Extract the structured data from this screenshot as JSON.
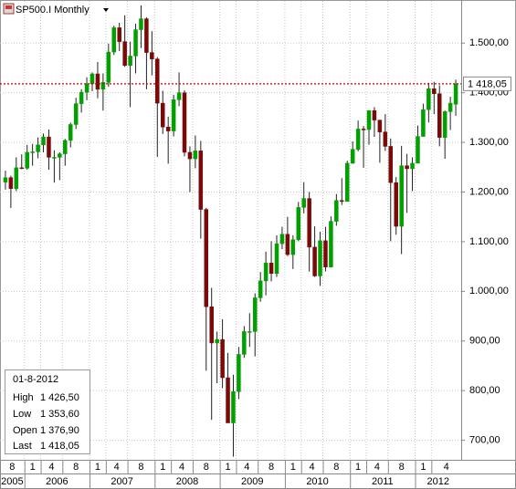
{
  "chart_data": {
    "type": "candlestick",
    "title": "SP500.I Monthly",
    "x": [
      "2005-09",
      "2005-10",
      "2005-11",
      "2005-12",
      "2006-01",
      "2006-02",
      "2006-03",
      "2006-04",
      "2006-05",
      "2006-06",
      "2006-07",
      "2006-08",
      "2006-09",
      "2006-10",
      "2006-11",
      "2006-12",
      "2007-01",
      "2007-02",
      "2007-03",
      "2007-04",
      "2007-05",
      "2007-06",
      "2007-07",
      "2007-08",
      "2007-09",
      "2007-10",
      "2007-11",
      "2007-12",
      "2008-01",
      "2008-02",
      "2008-03",
      "2008-04",
      "2008-05",
      "2008-06",
      "2008-07",
      "2008-08",
      "2008-09",
      "2008-10",
      "2008-11",
      "2008-12",
      "2009-01",
      "2009-02",
      "2009-03",
      "2009-04",
      "2009-05",
      "2009-06",
      "2009-07",
      "2009-08",
      "2009-09",
      "2009-10",
      "2009-11",
      "2009-12",
      "2010-01",
      "2010-02",
      "2010-03",
      "2010-04",
      "2010-05",
      "2010-06",
      "2010-07",
      "2010-08",
      "2010-09",
      "2010-10",
      "2010-11",
      "2010-12",
      "2011-01",
      "2011-02",
      "2011-03",
      "2011-04",
      "2011-05",
      "2011-06",
      "2011-07",
      "2011-08",
      "2011-09",
      "2011-10",
      "2011-11",
      "2011-12",
      "2012-01",
      "2012-02",
      "2012-03",
      "2012-04",
      "2012-05",
      "2012-06",
      "2012-07",
      "2012-08"
    ],
    "open": [
      1220,
      1229,
      1207,
      1249,
      1248,
      1280,
      1281,
      1295,
      1311,
      1270,
      1270,
      1277,
      1304,
      1336,
      1378,
      1401,
      1418,
      1438,
      1407,
      1421,
      1482,
      1531,
      1503,
      1455,
      1474,
      1527,
      1549,
      1481,
      1468,
      1379,
      1331,
      1323,
      1386,
      1400,
      1280,
      1267,
      1283,
      1165,
      969,
      896,
      903,
      826,
      735,
      798,
      873,
      919,
      919,
      987,
      1021,
      1057,
      1036,
      1096,
      1115,
      1074,
      1104,
      1169,
      1187,
      1089,
      1031,
      1102,
      1049,
      1141,
      1183,
      1181,
      1258,
      1286,
      1327,
      1326,
      1364,
      1345,
      1321,
      1292,
      1219,
      1131,
      1253,
      1247,
      1258,
      1312,
      1366,
      1408,
      1398,
      1310,
      1362,
      1376.9
    ],
    "high": [
      1243,
      1233,
      1270,
      1276,
      1295,
      1297,
      1310,
      1318,
      1326,
      1284,
      1280,
      1307,
      1340,
      1390,
      1407,
      1431,
      1441,
      1462,
      1439,
      1499,
      1535,
      1541,
      1556,
      1503,
      1539,
      1576,
      1552,
      1524,
      1472,
      1404,
      1352,
      1396,
      1441,
      1405,
      1292,
      1314,
      1303,
      1168,
      1007,
      919,
      944,
      876,
      832,
      888,
      930,
      956,
      996,
      1039,
      1080,
      1101,
      1113,
      1130,
      1150,
      1113,
      1180,
      1220,
      1200,
      1131,
      1120,
      1130,
      1151,
      1196,
      1228,
      1263,
      1302,
      1344,
      1333,
      1364,
      1371,
      1345,
      1357,
      1308,
      1230,
      1293,
      1277,
      1270,
      1334,
      1378,
      1420,
      1422,
      1415,
      1364,
      1392,
      1426.5
    ],
    "low": [
      1205,
      1168,
      1202,
      1246,
      1245,
      1253,
      1268,
      1280,
      1245,
      1219,
      1224,
      1253,
      1290,
      1327,
      1360,
      1385,
      1403,
      1389,
      1364,
      1412,
      1476,
      1484,
      1452,
      1371,
      1439,
      1490,
      1407,
      1435,
      1271,
      1317,
      1257,
      1312,
      1373,
      1272,
      1200,
      1248,
      1106,
      840,
      741,
      815,
      805,
      735,
      667,
      783,
      866,
      888,
      869,
      979,
      992,
      1020,
      1029,
      1085,
      1071,
      1045,
      1101,
      1157,
      1040,
      1029,
      1011,
      1040,
      1048,
      1132,
      1174,
      1181,
      1257,
      1282,
      1249,
      1295,
      1311,
      1259,
      1283,
      1101,
      1114,
      1075,
      1158,
      1202,
      1258,
      1312,
      1340,
      1357,
      1292,
      1267,
      1325,
      1353.6
    ],
    "close": [
      1229,
      1207,
      1249,
      1248,
      1280,
      1281,
      1295,
      1311,
      1270,
      1270,
      1277,
      1304,
      1336,
      1378,
      1401,
      1418,
      1438,
      1407,
      1421,
      1482,
      1531,
      1503,
      1455,
      1474,
      1527,
      1549,
      1481,
      1468,
      1379,
      1331,
      1323,
      1386,
      1400,
      1280,
      1267,
      1283,
      1165,
      969,
      896,
      903,
      826,
      735,
      798,
      873,
      919,
      919,
      987,
      1021,
      1057,
      1036,
      1096,
      1115,
      1074,
      1104,
      1169,
      1187,
      1089,
      1031,
      1102,
      1049,
      1141,
      1183,
      1181,
      1258,
      1286,
      1327,
      1326,
      1364,
      1345,
      1321,
      1292,
      1219,
      1131,
      1253,
      1247,
      1258,
      1312,
      1366,
      1408,
      1398,
      1310,
      1362,
      1379,
      1418.05
    ],
    "up_color": "#00a000",
    "down_color": "#7a0a0a",
    "xlim": [
      "2005-08",
      "2012-09"
    ],
    "ylim": [
      668,
      1585
    ],
    "yticks": [
      {
        "value": 700,
        "label": "700,00"
      },
      {
        "value": 800,
        "label": "800,00"
      },
      {
        "value": 900,
        "label": "900,00"
      },
      {
        "value": 1000,
        "label": "1.000,00"
      },
      {
        "value": 1100,
        "label": "1.100,00"
      },
      {
        "value": 1200,
        "label": "1.200,00"
      },
      {
        "value": 1300,
        "label": "1.300,00"
      },
      {
        "value": 1400,
        "label": "1.400,00"
      },
      {
        "value": 1500,
        "label": "1.500,00"
      }
    ],
    "x_month_ticks": [
      {
        "value": "2005-08",
        "label": "8"
      },
      {
        "value": "2006-01",
        "label": "1"
      },
      {
        "value": "2006-04",
        "label": "4"
      },
      {
        "value": "2006-08",
        "label": "8"
      },
      {
        "value": "2007-01",
        "label": "1"
      },
      {
        "value": "2007-04",
        "label": "4"
      },
      {
        "value": "2007-08",
        "label": "8"
      },
      {
        "value": "2008-01",
        "label": "1"
      },
      {
        "value": "2008-04",
        "label": "4"
      },
      {
        "value": "2008-08",
        "label": "8"
      },
      {
        "value": "2009-01",
        "label": "1"
      },
      {
        "value": "2009-04",
        "label": "4"
      },
      {
        "value": "2009-08",
        "label": "8"
      },
      {
        "value": "2010-01",
        "label": "1"
      },
      {
        "value": "2010-04",
        "label": "4"
      },
      {
        "value": "2010-08",
        "label": "8"
      },
      {
        "value": "2011-01",
        "label": "1"
      },
      {
        "value": "2011-04",
        "label": "4"
      },
      {
        "value": "2011-08",
        "label": "8"
      },
      {
        "value": "2012-01",
        "label": "1"
      },
      {
        "value": "2012-04",
        "label": "4"
      }
    ],
    "x_year_ticks": [
      {
        "value": "2005-08",
        "label": "2005"
      },
      {
        "value": "2006-01",
        "label": "2006"
      },
      {
        "value": "2007-01",
        "label": "2007"
      },
      {
        "value": "2008-01",
        "label": "2008"
      },
      {
        "value": "2009-01",
        "label": "2009"
      },
      {
        "value": "2010-01",
        "label": "2010"
      },
      {
        "value": "2011-01",
        "label": "2011"
      },
      {
        "value": "2012-01",
        "label": "2012"
      }
    ],
    "grid": true,
    "last_price": {
      "value": 1418.05,
      "label": "1 418,05",
      "color": "#cc0000"
    },
    "info_box": {
      "date": "01-8-2012",
      "rows": [
        {
          "label": "High",
          "value": "1 426,50"
        },
        {
          "label": "Low",
          "value": "1 353,60"
        },
        {
          "label": "Open",
          "value": "1 376,90"
        },
        {
          "label": "Last",
          "value": "1 418,05"
        }
      ]
    }
  }
}
